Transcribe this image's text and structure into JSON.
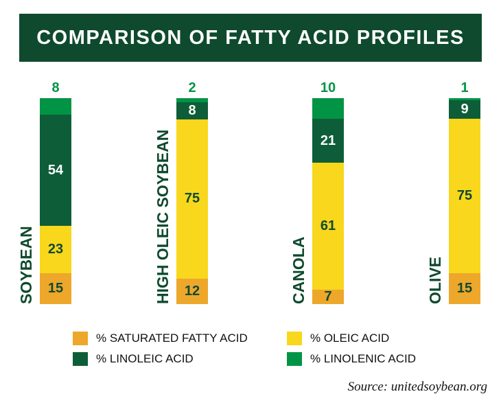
{
  "chart_data": {
    "type": "stacked-bar",
    "title": "COMPARISON OF FATTY ACID PROFILES",
    "categories": [
      "SOYBEAN",
      "HIGH OLEIC SOYBEAN",
      "CANOLA",
      "OLIVE"
    ],
    "series": [
      {
        "name": "% SATURATED FATTY ACID",
        "color": "#eda72b",
        "values": [
          15,
          12,
          7,
          15
        ]
      },
      {
        "name": "% OLEIC ACID",
        "color": "#f8d71c",
        "values": [
          23,
          75,
          61,
          75
        ]
      },
      {
        "name": "% LINOLEIC ACID",
        "color": "#0d5e38",
        "values": [
          54,
          8,
          21,
          9
        ]
      },
      {
        "name": "% LINOLENIC ACID",
        "color": "#009444",
        "values": [
          8,
          2,
          10,
          1
        ]
      }
    ],
    "legend_position": "bottom",
    "source": "Source: unitedsoybean.org"
  }
}
